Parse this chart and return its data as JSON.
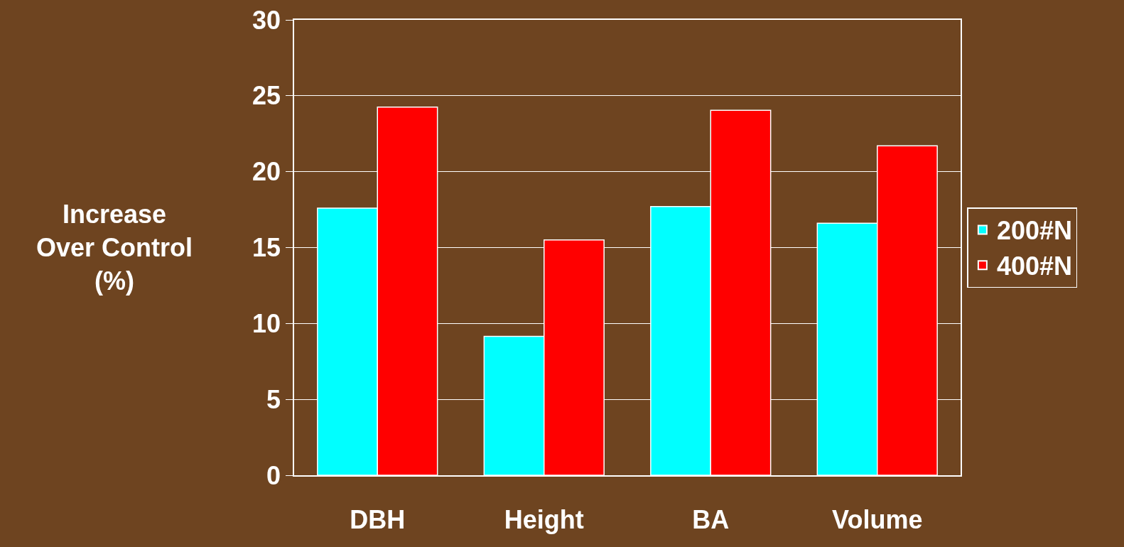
{
  "chart_data": {
    "type": "bar",
    "ylabel": "Increase\nOver Control\n(%)",
    "categories": [
      "DBH",
      "Height",
      "BA",
      "Volume"
    ],
    "series": [
      {
        "name": "200#N",
        "color": "#00ffff",
        "values": [
          17.6,
          9.15,
          17.7,
          16.6
        ]
      },
      {
        "name": "400#N",
        "color": "#ff0000",
        "values": [
          24.25,
          15.5,
          24.05,
          21.7
        ]
      }
    ],
    "ylim": [
      0,
      30
    ],
    "yticks": [
      0,
      5,
      10,
      15,
      20,
      25,
      30
    ],
    "grid": "y",
    "legend": "right"
  }
}
